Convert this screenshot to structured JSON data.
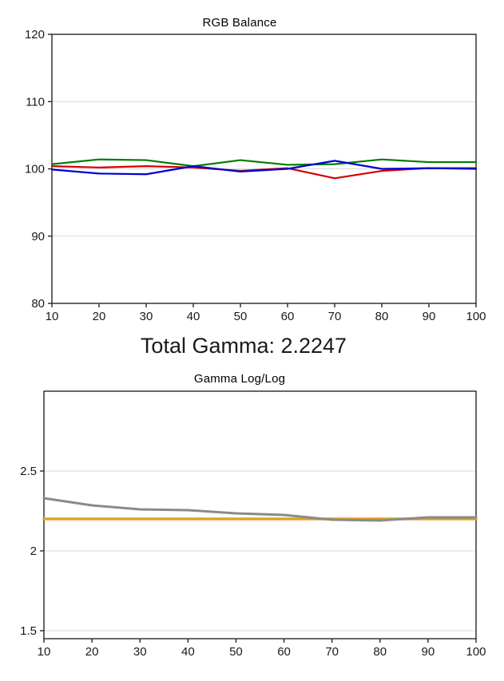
{
  "page": {
    "background": "#ffffff"
  },
  "total_gamma": {
    "label": "Total Gamma: 2.2247"
  },
  "colors": {
    "red_series": "#d40000",
    "green_series": "#007d00",
    "blue_series": "#0000d4",
    "measured_gamma": "#8a8a8a",
    "target_gamma": "#e0a226",
    "gridline": "#d9d9d9",
    "axis": "#262626"
  },
  "chart_data": [
    {
      "type": "line",
      "title": "RGB Balance",
      "x": [
        10,
        20,
        30,
        40,
        50,
        60,
        70,
        80,
        90,
        100
      ],
      "xticks": [
        10,
        20,
        30,
        40,
        50,
        60,
        70,
        80,
        90,
        100
      ],
      "yticks": [
        80,
        90,
        100,
        110,
        120
      ],
      "xlim": [
        10,
        100
      ],
      "ylim": [
        80,
        120
      ],
      "grid": "horizontal",
      "legend": "none",
      "series": [
        {
          "name": "red-balance",
          "color": "#d40000",
          "width": 2.2,
          "values": [
            100.4,
            100.2,
            100.4,
            100.2,
            99.7,
            100.1,
            98.6,
            99.7,
            100.1,
            100.1
          ]
        },
        {
          "name": "green-balance",
          "color": "#007d00",
          "width": 2.2,
          "values": [
            100.7,
            101.4,
            101.3,
            100.4,
            101.3,
            100.6,
            100.7,
            101.4,
            101.0,
            101.0
          ]
        },
        {
          "name": "blue-balance",
          "color": "#0000d4",
          "width": 2.2,
          "values": [
            99.9,
            99.3,
            99.2,
            100.4,
            99.6,
            100.0,
            101.2,
            100.0,
            100.1,
            100.0
          ]
        }
      ]
    },
    {
      "type": "line",
      "title": "Gamma Log/Log",
      "x": [
        10,
        20,
        30,
        40,
        50,
        60,
        70,
        80,
        90,
        100
      ],
      "xticks": [
        10,
        20,
        30,
        40,
        50,
        60,
        70,
        80,
        90,
        100
      ],
      "yticks": [
        1.5,
        2,
        2.5
      ],
      "xlim": [
        10,
        100
      ],
      "ylim": [
        1.45,
        3.0
      ],
      "grid": "horizontal",
      "legend": "none",
      "series": [
        {
          "name": "gamma-target",
          "color": "#e0a226",
          "width": 3.5,
          "values": [
            2.2,
            2.2,
            2.2,
            2.2,
            2.2,
            2.2,
            2.2,
            2.2,
            2.2,
            2.2
          ]
        },
        {
          "name": "gamma-measured",
          "color": "#8a8a8a",
          "width": 3.0,
          "values": [
            2.33,
            2.285,
            2.26,
            2.255,
            2.235,
            2.225,
            2.195,
            2.19,
            2.21,
            2.21
          ]
        }
      ]
    }
  ]
}
